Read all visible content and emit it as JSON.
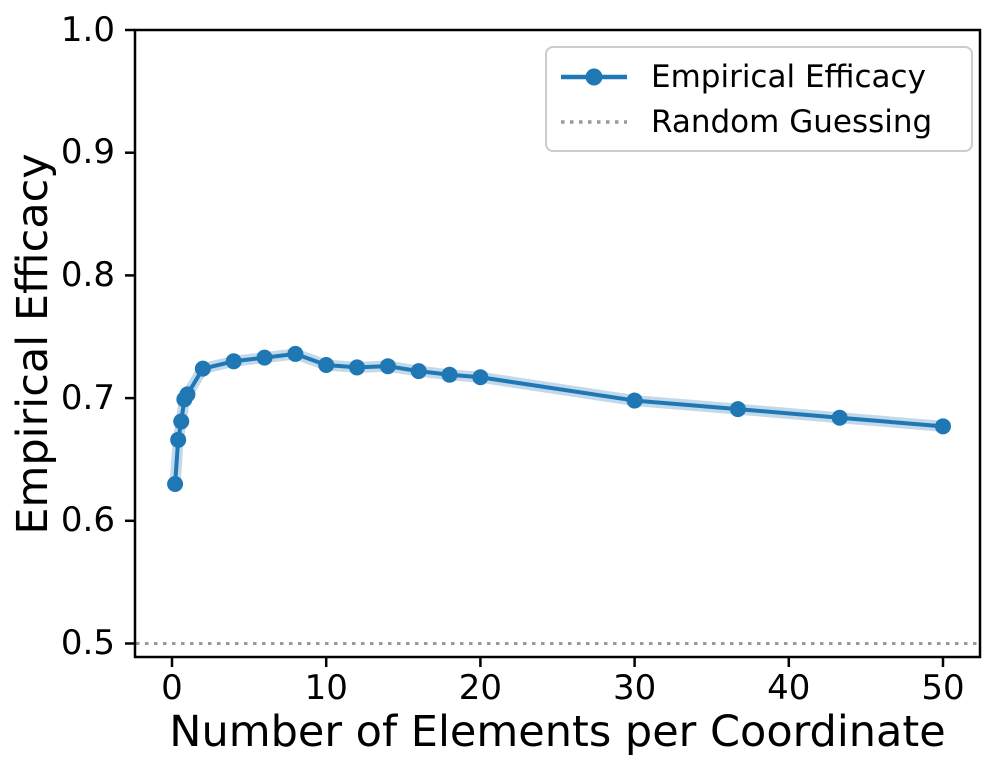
{
  "figure": {
    "background": "#ffffff",
    "text_color": "#000000",
    "spine_color": "#000000"
  },
  "chart_data": {
    "type": "line",
    "title": "",
    "xlabel": "Number of Elements per Coordinate",
    "ylabel": "Empirical Efficacy",
    "xlim": [
      -2.4,
      52.4
    ],
    "ylim": [
      0.489,
      1.0
    ],
    "xticks": [
      0,
      10,
      20,
      30,
      40,
      50
    ],
    "xtick_labels": [
      "0",
      "10",
      "20",
      "30",
      "40",
      "50"
    ],
    "yticks": [
      0.5,
      0.6,
      0.7,
      0.8,
      0.9,
      1.0
    ],
    "ytick_labels": [
      "0.5",
      "0.6",
      "0.7",
      "0.8",
      "0.9",
      "1.0"
    ],
    "grid": false,
    "legend_position": "upper right",
    "series": [
      {
        "name": "Empirical Efficacy",
        "type": "line+markers",
        "color": "#1f77b4",
        "band_color": "rgba(31,119,180,0.28)",
        "x": [
          0.2,
          0.4,
          0.6,
          0.8,
          1,
          2,
          4,
          6,
          8,
          10,
          12,
          14,
          16,
          18,
          20,
          30,
          36.7,
          43.3,
          50
        ],
        "y": [
          0.63,
          0.666,
          0.681,
          0.699,
          0.703,
          0.724,
          0.73,
          0.733,
          0.736,
          0.727,
          0.725,
          0.726,
          0.722,
          0.719,
          0.717,
          0.698,
          0.691,
          0.684,
          0.677
        ]
      },
      {
        "name": "Random Guessing",
        "type": "hline-dotted",
        "color": "#999999",
        "y": 0.5
      }
    ]
  },
  "legend": {
    "entries": [
      {
        "label": "Empirical Efficacy"
      },
      {
        "label": "Random Guessing"
      }
    ]
  }
}
